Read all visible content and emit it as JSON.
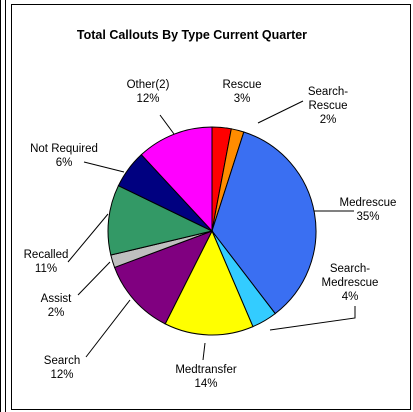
{
  "chart_data": {
    "type": "pie",
    "title": "Total Callouts By Type Current Quarter",
    "slices": [
      {
        "label_lines": [
          "Rescue",
          "3%"
        ],
        "value": 3,
        "color": "#ff0000"
      },
      {
        "label_lines": [
          "Search-",
          "Rescue",
          "2%"
        ],
        "value": 2,
        "color": "#ff8c00"
      },
      {
        "label_lines": [
          "Medrescue",
          "35%"
        ],
        "value": 35,
        "color": "#3a6ff2"
      },
      {
        "label_lines": [
          "Search-",
          "Medrescue",
          "4%"
        ],
        "value": 4,
        "color": "#33ccff"
      },
      {
        "label_lines": [
          "Medtransfer",
          "14%"
        ],
        "value": 14,
        "color": "#ffff00"
      },
      {
        "label_lines": [
          "Search",
          "12%"
        ],
        "value": 12,
        "color": "#800080"
      },
      {
        "label_lines": [
          "Assist",
          "2%"
        ],
        "value": 2,
        "color": "#bfbfbf"
      },
      {
        "label_lines": [
          "Recalled",
          "11%"
        ],
        "value": 11,
        "color": "#339966"
      },
      {
        "label_lines": [
          "Not Required",
          "6%"
        ],
        "value": 6,
        "color": "#000080"
      },
      {
        "label_lines": [
          "Other(2)",
          "12%"
        ],
        "value": 12,
        "color": "#ff00ff"
      }
    ]
  }
}
